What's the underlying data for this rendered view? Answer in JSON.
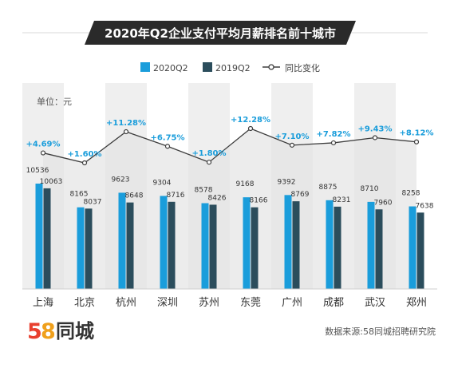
{
  "title": "2020年Q2企业支付平均月薪排名前十城市",
  "unit_label": "单位：元",
  "legend": [
    {
      "label": "2020Q2",
      "kind": "bar",
      "color": "#1a9ddb"
    },
    {
      "label": "2019Q2",
      "kind": "bar",
      "color": "#2b4d5c"
    },
    {
      "label": "同比变化",
      "kind": "line",
      "color": "#3d3d3d"
    }
  ],
  "brand": {
    "number": "58",
    "text": "同城"
  },
  "source": "数据来源:58同城招聘研究院",
  "colors": {
    "bar_2020": "#1a9ddb",
    "bar_2019": "#2b4d5c",
    "line": "#3d3d3d",
    "pct_label": "#1a9ddb",
    "title_bg": "#2a2a2a",
    "title_text": "#ffffff",
    "band": "#efefef",
    "brand_5": "#e8402f",
    "brand_8": "#f0a01c",
    "brand_text": "#333333"
  },
  "chart_data": {
    "type": "bar",
    "categories": [
      "上海",
      "北京",
      "杭州",
      "深圳",
      "苏州",
      "东莞",
      "广州",
      "成都",
      "武汉",
      "郑州"
    ],
    "series": [
      {
        "name": "2020Q2",
        "values": [
          10536,
          8165,
          9623,
          9304,
          8578,
          9168,
          9392,
          8875,
          8710,
          8258
        ]
      },
      {
        "name": "2019Q2",
        "values": [
          10063,
          8037,
          8648,
          8716,
          8426,
          8166,
          8769,
          8231,
          7960,
          7638
        ]
      }
    ],
    "line_series": {
      "name": "同比变化",
      "values": [
        4.69,
        1.6,
        11.28,
        6.75,
        1.8,
        12.28,
        7.1,
        7.82,
        9.43,
        8.12
      ],
      "labels": [
        "+4.69%",
        "+1.60%",
        "+11.28%",
        "+6.75%",
        "+1.80%",
        "+12.28%",
        "+7.10%",
        "+7.82%",
        "+9.43%",
        "+8.12%"
      ]
    }
  }
}
